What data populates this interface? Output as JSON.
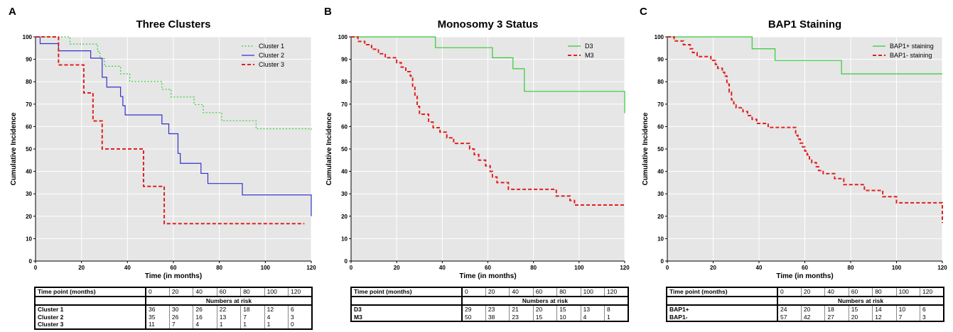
{
  "chart_data": [
    {
      "type": "line",
      "panel_letter": "A",
      "title": "Three Clusters",
      "xlabel": "Time (in months)",
      "ylabel": "Cumulative Incidence",
      "xlim": [
        0,
        120
      ],
      "ylim": [
        0,
        100
      ],
      "xticks": [
        "0",
        "20",
        "40",
        "60",
        "80",
        "100",
        "120"
      ],
      "yticks": [
        "0",
        "10",
        "20",
        "30",
        "40",
        "50",
        "60",
        "70",
        "80",
        "90",
        "100"
      ],
      "grid": true,
      "legend_position": "top-right",
      "series": [
        {
          "name": "Cluster 1",
          "color": "#33cc33",
          "dash": "dotted",
          "steps": [
            [
              0,
              100
            ],
            [
              15,
              100
            ],
            [
              15,
              96.8
            ],
            [
              25,
              96.8
            ],
            [
              27,
              93.5
            ],
            [
              28,
              90.3
            ],
            [
              30,
              86.9
            ],
            [
              37,
              83.5
            ],
            [
              41,
              80.1
            ],
            [
              51,
              80.1
            ],
            [
              55,
              76.6
            ],
            [
              59,
              73.2
            ],
            [
              69,
              69.8
            ],
            [
              73,
              66.2
            ],
            [
              81,
              62.6
            ],
            [
              96,
              59
            ],
            [
              120,
              58.6
            ]
          ]
        },
        {
          "name": "Cluster 2",
          "color": "#3333cc",
          "dash": "solid",
          "steps": [
            [
              0,
              100
            ],
            [
              2,
              97
            ],
            [
              10,
              93.8
            ],
            [
              24,
              90.5
            ],
            [
              29,
              82
            ],
            [
              31,
              77.6
            ],
            [
              37,
              73.4
            ],
            [
              38,
              69.3
            ],
            [
              39,
              65.2
            ],
            [
              55,
              61.2
            ],
            [
              58,
              56.8
            ],
            [
              62,
              48
            ],
            [
              63,
              43.6
            ],
            [
              72,
              39.1
            ],
            [
              75,
              34.6
            ],
            [
              90,
              29.5
            ],
            [
              120,
              20
            ]
          ]
        },
        {
          "name": "Cluster 3",
          "color": "#e02020",
          "dash": "dashed",
          "steps": [
            [
              0,
              100
            ],
            [
              10,
              87.5
            ],
            [
              21,
              75
            ],
            [
              25,
              62.5
            ],
            [
              29,
              50
            ],
            [
              47,
              33.3
            ],
            [
              56,
              16.7
            ],
            [
              117,
              16.7
            ]
          ]
        }
      ],
      "table": {
        "header_label": "Time point (months)",
        "time_points": [
          "0",
          "20",
          "40",
          "60",
          "80",
          "100",
          "120"
        ],
        "subheader": "Numbers at risk",
        "rows": [
          {
            "label": "Cluster 1",
            "values": [
              "36",
              "30",
              "26",
              "22",
              "18",
              "12",
              "6"
            ]
          },
          {
            "label": "Cluster 2",
            "values": [
              "35",
              "26",
              "16",
              "13",
              "7",
              "4",
              "3"
            ]
          },
          {
            "label": "Cluster 3",
            "values": [
              "11",
              "7",
              "4",
              "1",
              "1",
              "1",
              "0"
            ]
          }
        ]
      }
    },
    {
      "type": "line",
      "panel_letter": "B",
      "title": "Monosomy 3 Status",
      "xlabel": "Time (in months)",
      "ylabel": "Cumulative Incidence",
      "xlim": [
        0,
        120
      ],
      "ylim": [
        0,
        100
      ],
      "xticks": [
        "0",
        "20",
        "40",
        "60",
        "80",
        "100",
        "120"
      ],
      "yticks": [
        "0",
        "10",
        "20",
        "30",
        "40",
        "50",
        "60",
        "70",
        "80",
        "90",
        "100"
      ],
      "grid": true,
      "legend_position": "top-right",
      "series": [
        {
          "name": "D3",
          "color": "#33cc33",
          "dash": "solid",
          "steps": [
            [
              0,
              100
            ],
            [
              37,
              95.2
            ],
            [
              62,
              90.7
            ],
            [
              71,
              85.8
            ],
            [
              76,
              75.7
            ],
            [
              120,
              75.7
            ],
            [
              120,
              66
            ]
          ]
        },
        {
          "name": "M3",
          "color": "#e02020",
          "dash": "dashed",
          "steps": [
            [
              0,
              100
            ],
            [
              3,
              98
            ],
            [
              6,
              96.5
            ],
            [
              9,
              94.5
            ],
            [
              12,
              92.5
            ],
            [
              15,
              90.7
            ],
            [
              20,
              88.5
            ],
            [
              22,
              86.5
            ],
            [
              24,
              84.5
            ],
            [
              26,
              82.5
            ],
            [
              27,
              78
            ],
            [
              28,
              73.5
            ],
            [
              29,
              69
            ],
            [
              30,
              65.5
            ],
            [
              34,
              62
            ],
            [
              36,
              59.5
            ],
            [
              39,
              57.5
            ],
            [
              42,
              55
            ],
            [
              45,
              52.5
            ],
            [
              52,
              50
            ],
            [
              54,
              47.5
            ],
            [
              56,
              45
            ],
            [
              59,
              42.5
            ],
            [
              61,
              40
            ],
            [
              62,
              37.5
            ],
            [
              64,
              35
            ],
            [
              69,
              32
            ],
            [
              90,
              29
            ],
            [
              96,
              27
            ],
            [
              98,
              25
            ],
            [
              120,
              25
            ]
          ]
        }
      ],
      "table": {
        "header_label": "Time point (months)",
        "time_points": [
          "0",
          "20",
          "40",
          "60",
          "80",
          "100",
          "120"
        ],
        "subheader": "Numbers at risk",
        "rows": [
          {
            "label": "D3",
            "values": [
              "29",
              "23",
              "21",
              "20",
              "15",
              "13",
              "8"
            ]
          },
          {
            "label": "M3",
            "values": [
              "50",
              "38",
              "23",
              "15",
              "10",
              "4",
              "1"
            ]
          }
        ]
      }
    },
    {
      "type": "line",
      "panel_letter": "C",
      "title": "BAP1 Staining",
      "xlabel": "Time (in months)",
      "ylabel": "Cumulative Incidence",
      "xlim": [
        0,
        120
      ],
      "ylim": [
        0,
        100
      ],
      "xticks": [
        "0",
        "20",
        "40",
        "60",
        "80",
        "100",
        "120"
      ],
      "yticks": [
        "0",
        "10",
        "20",
        "30",
        "40",
        "50",
        "60",
        "70",
        "80",
        "90",
        "100"
      ],
      "grid": true,
      "legend_position": "top-right",
      "series": [
        {
          "name": "BAP1+ staining",
          "color": "#33cc33",
          "dash": "solid",
          "steps": [
            [
              0,
              100
            ],
            [
              37,
              94.7
            ],
            [
              47,
              89.5
            ],
            [
              76,
              83.5
            ],
            [
              120,
              83.5
            ]
          ]
        },
        {
          "name": "BAP1- staining",
          "color": "#e02020",
          "dash": "dashed",
          "steps": [
            [
              0,
              100
            ],
            [
              3,
              98.2
            ],
            [
              7,
              96.5
            ],
            [
              10,
              94.7
            ],
            [
              11,
              93
            ],
            [
              13,
              91.2
            ],
            [
              19,
              89.5
            ],
            [
              21,
              87.7
            ],
            [
              22,
              86
            ],
            [
              24,
              84.2
            ],
            [
              25,
              82.5
            ],
            [
              26,
              78.9
            ],
            [
              27,
              75.4
            ],
            [
              28,
              71.9
            ],
            [
              29,
              70.2
            ],
            [
              30,
              68.4
            ],
            [
              33,
              66.7
            ],
            [
              35,
              64.9
            ],
            [
              37,
              63.2
            ],
            [
              39,
              61.4
            ],
            [
              44,
              59.6
            ],
            [
              56,
              56.1
            ],
            [
              57,
              54.4
            ],
            [
              58,
              52.6
            ],
            [
              59,
              50.9
            ],
            [
              60,
              49.1
            ],
            [
              61,
              47.4
            ],
            [
              62,
              45.6
            ],
            [
              63,
              43.9
            ],
            [
              65,
              42.1
            ],
            [
              66,
              40.4
            ],
            [
              68,
              39
            ],
            [
              73,
              36.8
            ],
            [
              77,
              34.1
            ],
            [
              86,
              31.5
            ],
            [
              94,
              28.7
            ],
            [
              100,
              26
            ],
            [
              120,
              26
            ],
            [
              120,
              17
            ]
          ]
        }
      ],
      "table": {
        "header_label": "Time point (months)",
        "time_points": [
          "0",
          "20",
          "40",
          "60",
          "80",
          "100",
          "120"
        ],
        "subheader": "Numbers at risk",
        "rows": [
          {
            "label": "BAP1+",
            "values": [
              "24",
              "20",
              "18",
              "15",
              "14",
              "10",
              "6"
            ]
          },
          {
            "label": "BAP1-",
            "values": [
              "57",
              "42",
              "27",
              "20",
              "12",
              "7",
              "3"
            ]
          }
        ]
      }
    }
  ]
}
